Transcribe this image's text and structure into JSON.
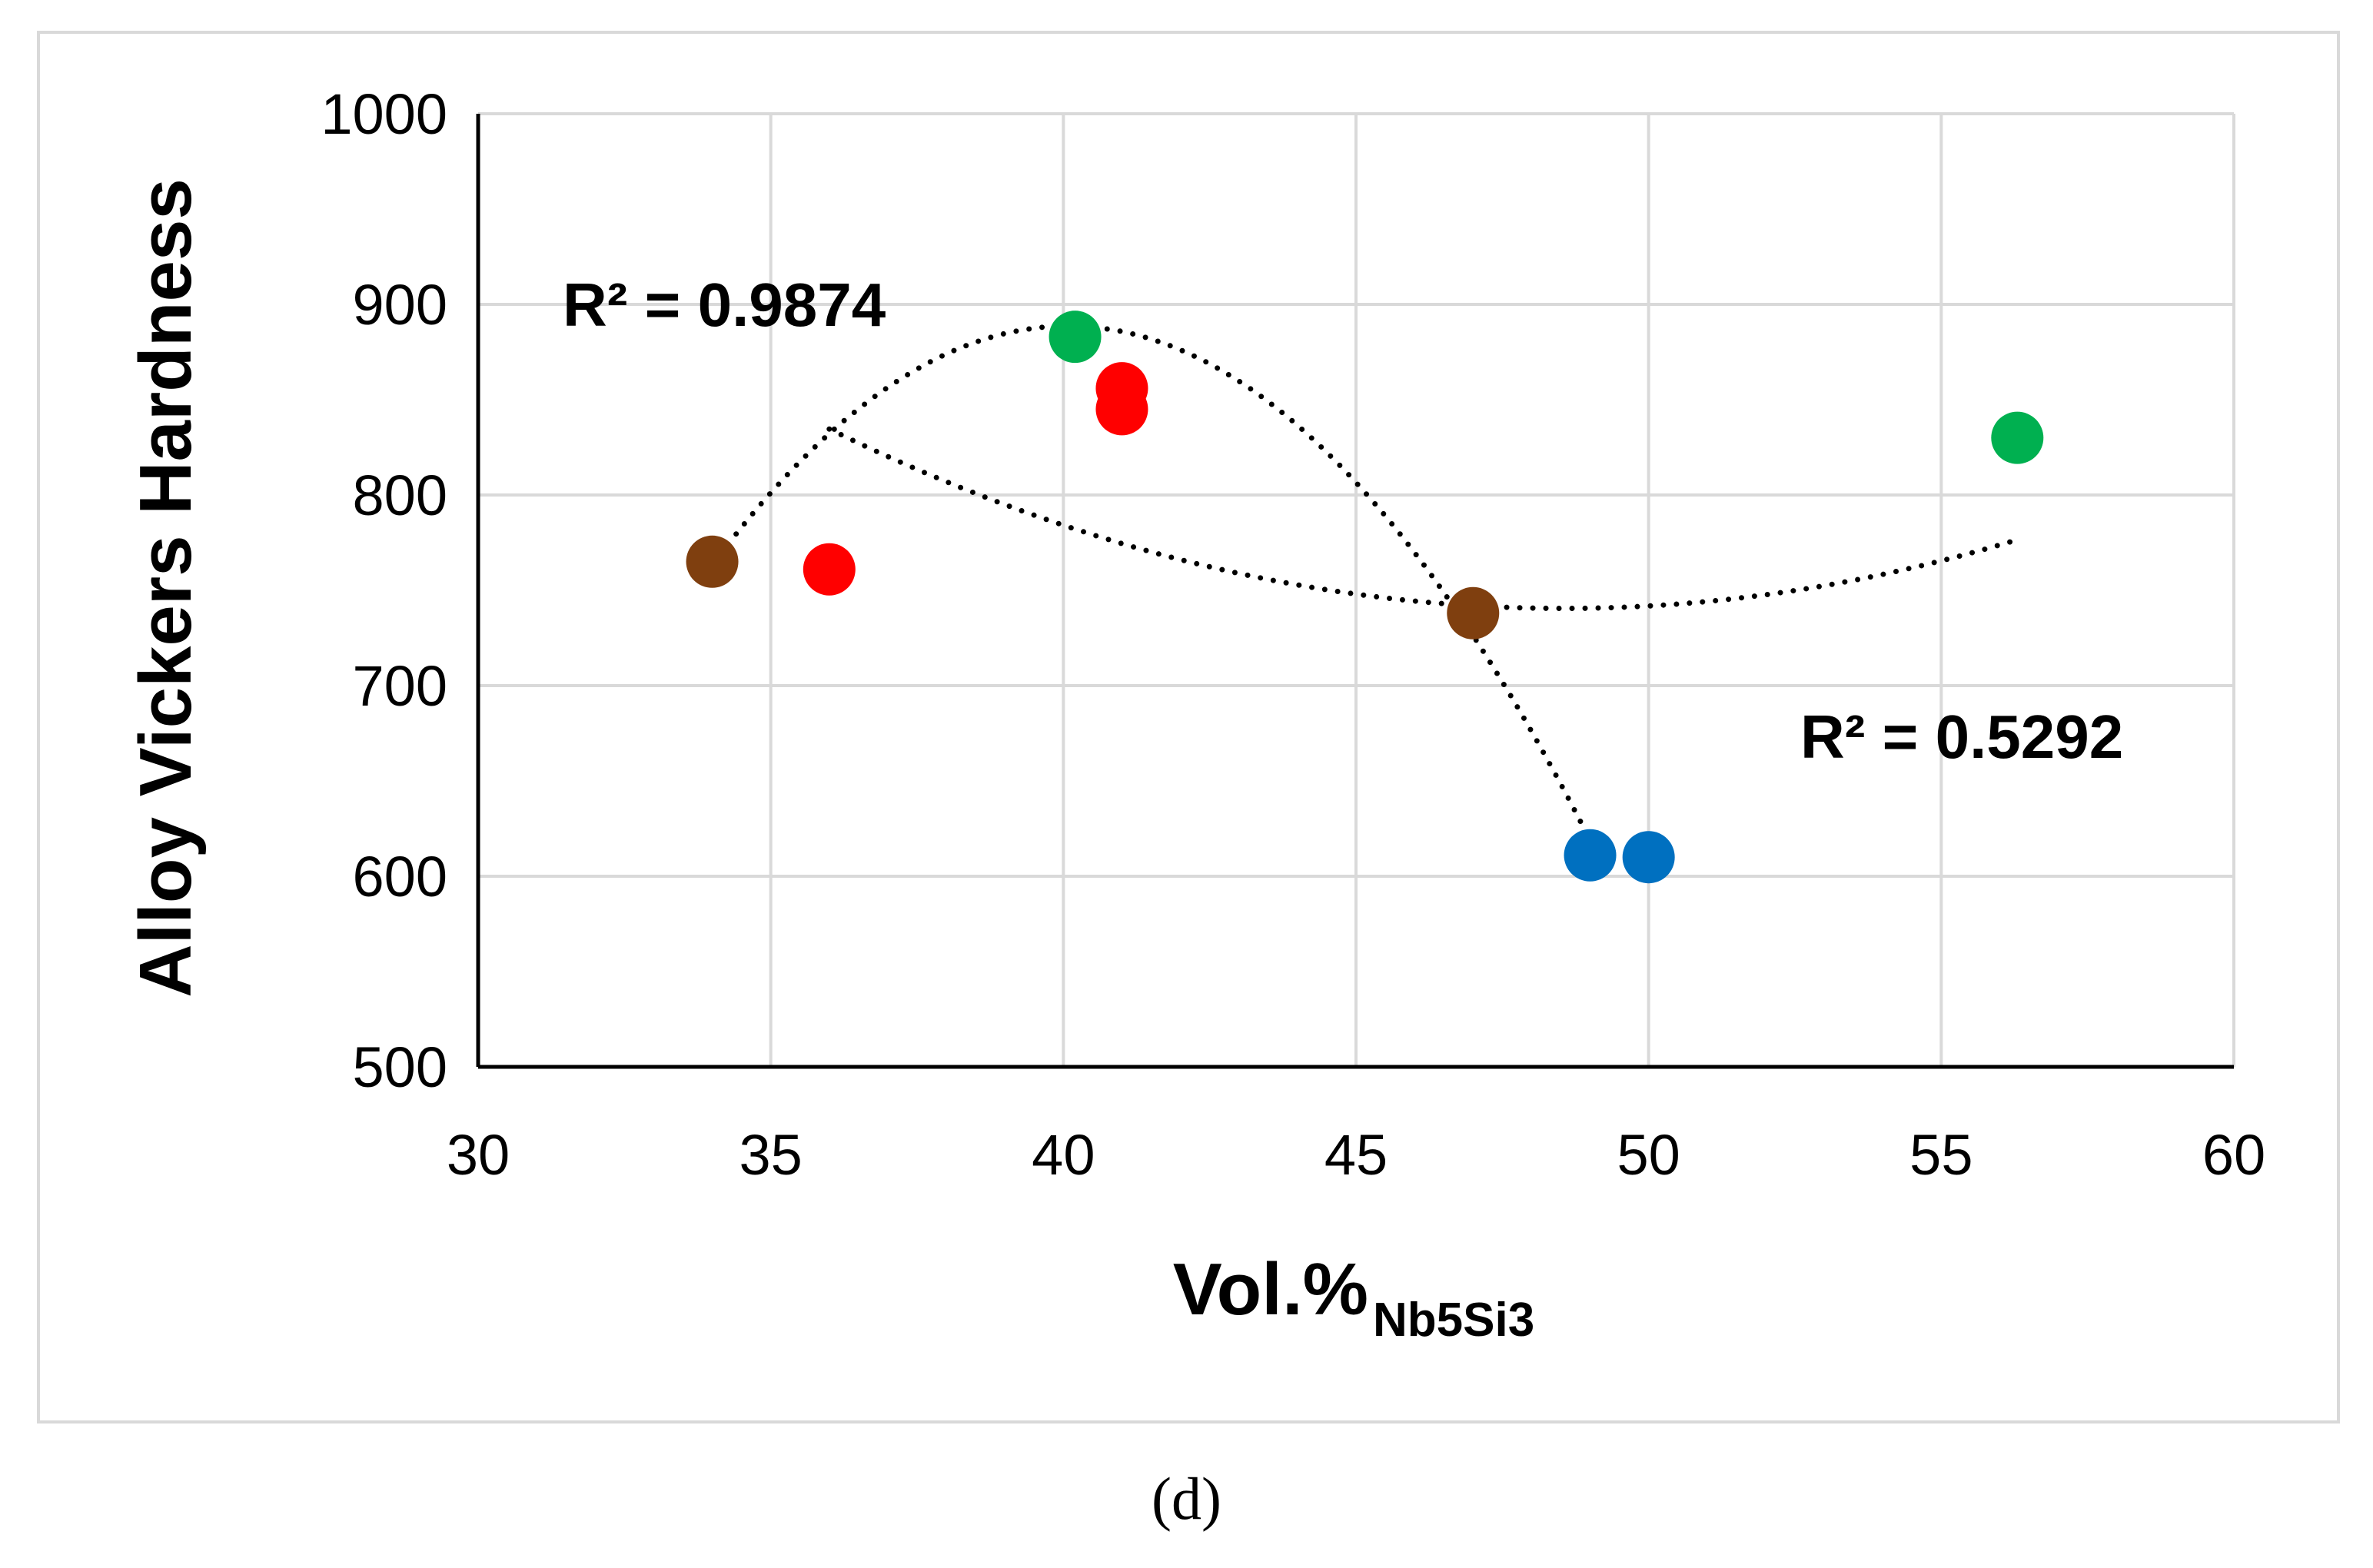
{
  "chart_data": {
    "type": "scatter",
    "title": "",
    "xlabel": "Vol.%",
    "xlabel_subscript": "Nb5Si3",
    "ylabel": "Alloy Vickers Hardness",
    "xlim": [
      30,
      60
    ],
    "ylim": [
      500,
      1000
    ],
    "xticks": [
      30,
      35,
      40,
      45,
      50,
      55,
      60
    ],
    "yticks": [
      500,
      600,
      700,
      800,
      900,
      1000
    ],
    "grid": true,
    "points": [
      {
        "x": 34.0,
        "y": 765,
        "color": "#7f3f0f"
      },
      {
        "x": 47.0,
        "y": 738,
        "color": "#7f3f0f"
      },
      {
        "x": 36.0,
        "y": 761,
        "color": "#ff0000"
      },
      {
        "x": 41.0,
        "y": 856,
        "color": "#ff0000"
      },
      {
        "x": 41.0,
        "y": 845,
        "color": "#ff0000"
      },
      {
        "x": 40.2,
        "y": 883,
        "color": "#00b050"
      },
      {
        "x": 56.3,
        "y": 830,
        "color": "#00b050"
      },
      {
        "x": 49.0,
        "y": 611,
        "color": "#0070c0"
      },
      {
        "x": 50.0,
        "y": 610,
        "color": "#0070c0"
      }
    ],
    "trendlines": [
      {
        "type": "polynomial-2",
        "x_range": [
          34.0,
          49.0
        ],
        "r2_label": "R² = 0.9874",
        "label_anchor": "upper-left"
      },
      {
        "type": "polynomial-2",
        "x_range": [
          36.0,
          56.3
        ],
        "r2_label": "R² = 0.5292",
        "label_anchor": "right"
      }
    ]
  },
  "caption": "(d)"
}
